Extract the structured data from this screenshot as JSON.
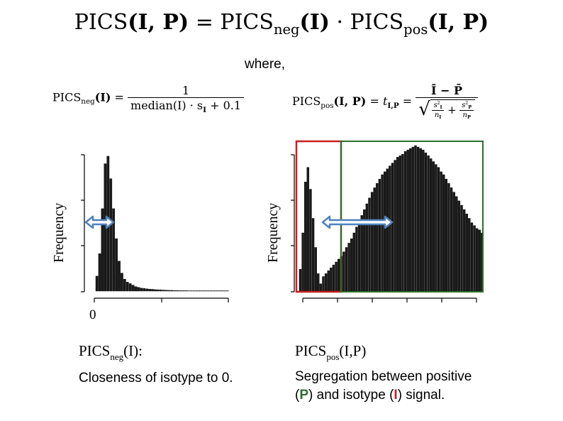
{
  "main_formula": {
    "lhs_name": "PICS",
    "args_ip": "(I, P)",
    "equals": "=",
    "neg_name": "PICS",
    "neg_sub": "neg",
    "neg_args": "(I)",
    "dot": "·",
    "pos_name": "PICS",
    "pos_sub": "pos",
    "pos_args": "(I, P)"
  },
  "where_text": "where,",
  "neg_formula": {
    "lhs": "PICS",
    "sub": "neg",
    "args": "(I)",
    "eq": "=",
    "numerator": "1",
    "denominator_a": "median(I) · s",
    "denominator_sub": "I",
    "denominator_b": " + 0.1"
  },
  "pos_formula": {
    "lhs": "PICS",
    "sub": "pos",
    "args": "(I, P)",
    "eq1": "=",
    "t": "t",
    "t_sub": "I,P",
    "eq2": "=",
    "numerator": "Ī − P̄",
    "s_i": "s",
    "s_i_sub": "I",
    "s_i_sup": "2",
    "n_i": "n",
    "n_i_sub": "I",
    "plus": "+",
    "s_p": "s",
    "s_p_sub": "P",
    "s_p_sup": "2",
    "n_p": "n",
    "n_p_sub": "P"
  },
  "left_chart": {
    "ylabel": "Frequency",
    "x_tick_zero": "0",
    "arrow_color": "#4f81bd",
    "bar_color": "#1a1a1a"
  },
  "right_chart": {
    "ylabel": "Frequency",
    "isotype_box_color": "#c8201f",
    "positive_box_color": "#2c6e2c",
    "arrow_color": "#4f81bd",
    "bar_color": "#1a1a1a"
  },
  "chart_data": [
    {
      "type": "bar",
      "ylabel": "Frequency",
      "xlabel": "",
      "x_tick_labels": [
        "0"
      ],
      "values": [
        10,
        25,
        55,
        85,
        90,
        75,
        55,
        35,
        20,
        12,
        8,
        6,
        5,
        4,
        3,
        2.5,
        2,
        1.8,
        1.5,
        1.3,
        1.2,
        1,
        0.9,
        0.8,
        0.7,
        0.6,
        0.5,
        0.5,
        0.4,
        0.4,
        0.3,
        0.3,
        0.3,
        0.2,
        0.2,
        0.2,
        0.2,
        0.2,
        0.1,
        0.1,
        0.1,
        0.1,
        0.1,
        0.1,
        0.1,
        0.1,
        0.1,
        0.1
      ]
    },
    {
      "type": "bar",
      "ylabel": "Frequency",
      "xlabel": "",
      "values": [
        15,
        40,
        75,
        85,
        70,
        50,
        30,
        12,
        5,
        10,
        12,
        14,
        16,
        18,
        20,
        22,
        24,
        27,
        30,
        33,
        36,
        40,
        44,
        48,
        52,
        56,
        60,
        64,
        68,
        71,
        74,
        77,
        80,
        82,
        84,
        86,
        88,
        90,
        92,
        93,
        94,
        96,
        97,
        98,
        99,
        100,
        99,
        98,
        97,
        95,
        93,
        91,
        89,
        87,
        85,
        82,
        80,
        77,
        74,
        71,
        68,
        65,
        62,
        59,
        56,
        53,
        50,
        47,
        45,
        43,
        42,
        40
      ]
    }
  ],
  "captions": {
    "left_name": "PICS",
    "left_sub": "neg",
    "left_args": "(I):",
    "left_desc": "Closeness of isotype to 0.",
    "right_name": "PICS",
    "right_sub": "pos",
    "right_args": "(I,P)",
    "right_desc_1": "Segregation between positive",
    "right_desc_2a": "(",
    "right_desc_P": "P",
    "right_desc_2b": ") and isotype (",
    "right_desc_I": "I",
    "right_desc_2c": ") signal."
  }
}
